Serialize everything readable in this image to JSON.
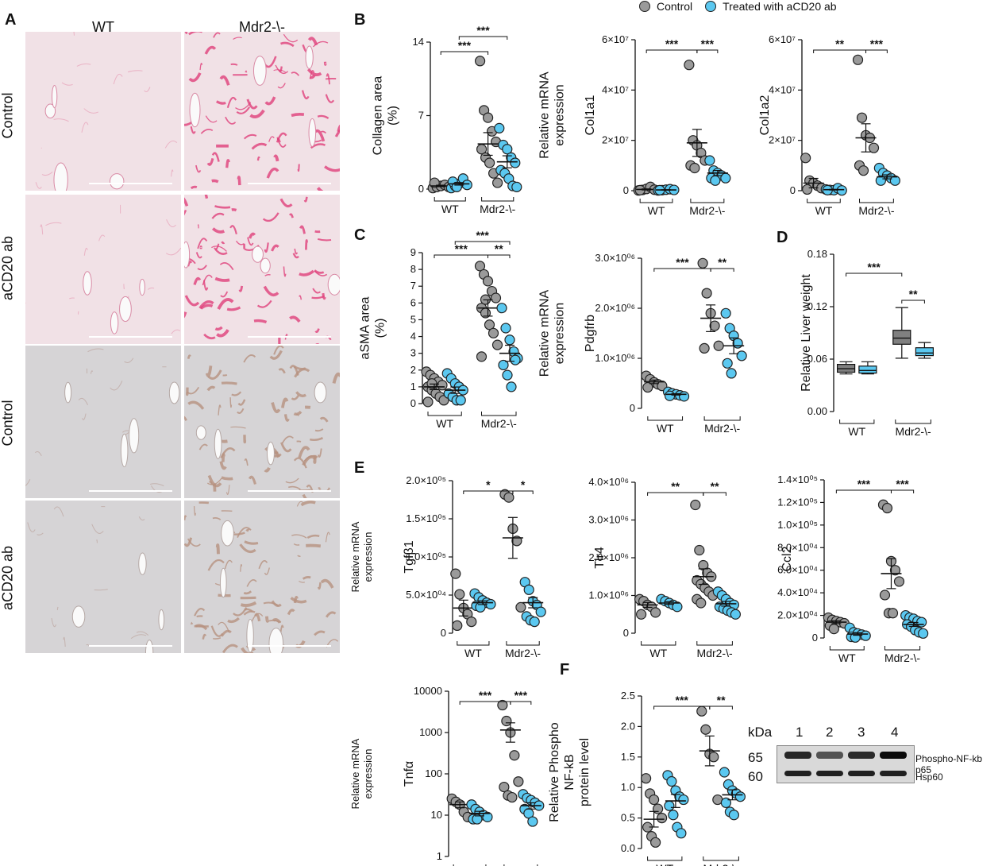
{
  "panels": {
    "A": "A",
    "B": "B",
    "C": "C",
    "D": "D",
    "E": "E",
    "F": "F"
  },
  "micro": {
    "col_headers": [
      "WT",
      "Mdr2-\\-"
    ],
    "row_labels": [
      "Control",
      "aCD20 ab",
      "Control",
      "aCD20 ab"
    ],
    "row_stains": [
      "sirius-red",
      "sirius-red",
      "asma-ihc",
      "asma-ihc"
    ]
  },
  "legend": {
    "items": [
      {
        "label": "Control",
        "color": "#9a9a9a"
      },
      {
        "label": "Treated with aCD20 ab",
        "color": "#5bc8f0"
      }
    ]
  },
  "colors": {
    "control": "#9a9a9a",
    "treated": "#5bc8f0",
    "box_control": "#808080",
    "box_treated": "#5bc8f0"
  },
  "group_labels": [
    "WT",
    "Mdr2-\\-"
  ],
  "chart_data": [
    {
      "id": "collagen",
      "type": "scatter",
      "ylabel": "Collagen area\n(%)",
      "ylim": [
        0,
        14
      ],
      "yticks": [
        "0",
        "7",
        "14"
      ],
      "series": [
        {
          "values": [
            0.1,
            0.2,
            0.3,
            0.4,
            0.2,
            0.6
          ],
          "mean": 0.3
        },
        {
          "values": [
            0.1,
            0.3,
            0.5,
            1.0,
            0.4,
            0.7,
            0.2
          ],
          "mean": 0.5
        },
        {
          "values": [
            12.2,
            7.5,
            6.8,
            5.5,
            4.5,
            3.8,
            3.0,
            2.5,
            1.5,
            0.6
          ],
          "mean": 4.3
        },
        {
          "values": [
            5.8,
            4.2,
            3.8,
            3.0,
            2.5,
            1.8,
            1.5,
            1.0,
            0.3,
            0.2
          ],
          "mean": 2.6
        }
      ],
      "sig": [
        {
          "from": 0,
          "to": 2,
          "label": "***"
        },
        {
          "from": 1,
          "to": 3,
          "label": "***"
        }
      ]
    },
    {
      "id": "col1a1",
      "type": "scatter",
      "ylabel": "Relative mRNA\nexpression",
      "ylabel2": "Col1a1",
      "ylim": [
        0,
        60000000
      ],
      "yticks": [
        "0",
        "2×10⁷",
        "4×10⁷",
        "6×10⁷"
      ],
      "series": [
        {
          "values": [
            100000,
            300000,
            700000,
            1500000,
            400000,
            200000
          ],
          "mean": 500000
        },
        {
          "values": [
            100000,
            200000,
            400000,
            600000,
            300000,
            200000
          ],
          "mean": 300000
        },
        {
          "values": [
            50000000,
            20000000,
            18000000,
            15000000,
            12000000,
            10000000,
            9000000
          ],
          "mean": 19000000
        },
        {
          "values": [
            12000000,
            8000000,
            7000000,
            6000000,
            5000000,
            5000000,
            4000000
          ],
          "mean": 7000000
        }
      ],
      "sig": [
        {
          "from": 0,
          "to": 2,
          "label": "***"
        },
        {
          "from": 2,
          "to": 3,
          "label": "***"
        }
      ]
    },
    {
      "id": "col1a2",
      "type": "scatter",
      "ylabel": "Col1a2",
      "ylim": [
        0,
        60000000
      ],
      "yticks": [
        "0",
        "2×10⁷",
        "4×10⁷",
        "6×10⁷"
      ],
      "series": [
        {
          "values": [
            13000000,
            4000000,
            3000000,
            2000000,
            1000000,
            500000
          ],
          "mean": 3000000
        },
        {
          "values": [
            500000,
            300000,
            200000,
            1000000,
            100000,
            200000
          ],
          "mean": 400000
        },
        {
          "values": [
            52000000,
            29000000,
            22000000,
            21000000,
            17000000,
            10000000,
            8000000
          ],
          "mean": 21000000
        },
        {
          "values": [
            9000000,
            7000000,
            6000000,
            5000000,
            4000000,
            4000000
          ],
          "mean": 5500000
        }
      ],
      "sig": [
        {
          "from": 0,
          "to": 2,
          "label": "**"
        },
        {
          "from": 2,
          "to": 3,
          "label": "***"
        }
      ]
    },
    {
      "id": "asma",
      "type": "scatter",
      "ylabel": "aSMA area\n(%)",
      "ylim": [
        0,
        9
      ],
      "yticks": [
        "0",
        "1",
        "2",
        "3",
        "4",
        "5",
        "6",
        "7",
        "8",
        "9"
      ],
      "series": [
        {
          "values": [
            1.9,
            1.7,
            1.5,
            1.3,
            1.1,
            1.0,
            0.8,
            0.6,
            0.4,
            0.2,
            0.1,
            1.2
          ],
          "mean": 1.0
        },
        {
          "values": [
            1.8,
            1.5,
            1.2,
            1.0,
            0.8,
            0.6,
            0.4,
            0.2,
            0.2
          ],
          "mean": 0.8
        },
        {
          "values": [
            8.2,
            7.7,
            7.3,
            6.7,
            6.3,
            5.7,
            5.4,
            4.7,
            4.2,
            3.5,
            2.8,
            6.2
          ],
          "mean": 5.7
        },
        {
          "values": [
            5.7,
            4.5,
            3.8,
            3.1,
            2.7,
            2.3,
            1.7,
            1.0,
            2.6
          ],
          "mean": 3.0
        }
      ],
      "sig": [
        {
          "from": 0,
          "to": 2,
          "label": "***"
        },
        {
          "from": 1,
          "to": 3,
          "label": "***"
        },
        {
          "from": 2,
          "to": 3,
          "label": "**"
        }
      ]
    },
    {
      "id": "pdgfrb",
      "type": "scatter",
      "ylabel": "Relative mRNA\nexpression",
      "ylabel2": "Pdgfrb",
      "ylim": [
        0,
        3000000
      ],
      "yticks": [
        "0",
        "1.0×10⁰⁶",
        "2.0×10⁰⁶",
        "3.0×10⁰⁶"
      ],
      "series": [
        {
          "values": [
            650000,
            580000,
            520000,
            480000,
            450000,
            420000
          ],
          "mean": 530000
        },
        {
          "values": [
            330000,
            300000,
            280000,
            260000,
            240000,
            250000
          ],
          "mean": 280000
        },
        {
          "values": [
            2900000,
            2300000,
            1900000,
            1650000,
            1250000,
            1200000
          ],
          "mean": 1800000
        },
        {
          "values": [
            1900000,
            1600000,
            1450000,
            1300000,
            1050000,
            900000,
            700000
          ],
          "mean": 1250000
        }
      ],
      "sig": [
        {
          "from": 0,
          "to": 2,
          "label": "***"
        },
        {
          "from": 2,
          "to": 3,
          "label": "**"
        }
      ]
    },
    {
      "id": "liver",
      "type": "box",
      "ylabel": "Relative Liver weight",
      "ylim": [
        0,
        0.18
      ],
      "yticks": [
        "0.00",
        "0.06",
        "0.12",
        "0.18"
      ],
      "boxes": [
        {
          "min": 0.043,
          "q1": 0.045,
          "median": 0.049,
          "q3": 0.054,
          "max": 0.057
        },
        {
          "min": 0.043,
          "q1": 0.044,
          "median": 0.047,
          "q3": 0.052,
          "max": 0.057
        },
        {
          "min": 0.061,
          "q1": 0.077,
          "median": 0.084,
          "q3": 0.093,
          "max": 0.119
        },
        {
          "min": 0.061,
          "q1": 0.064,
          "median": 0.067,
          "q3": 0.073,
          "max": 0.079
        }
      ],
      "sig": [
        {
          "from": 0,
          "to": 2,
          "label": "***"
        },
        {
          "from": 2,
          "to": 3,
          "label": "**"
        }
      ]
    },
    {
      "id": "tgfb1",
      "type": "scatter",
      "ylabel": "Relative mRNA\nexpression",
      "ylabel2": "Tgfβ1",
      "ylim": [
        0,
        200000
      ],
      "yticks": [
        "0",
        "5.0×10⁰⁴",
        "1.0×10⁰⁵",
        "1.5×10⁰⁵",
        "2.0×10⁰⁵"
      ],
      "series": [
        {
          "values": [
            78000,
            51000,
            33000,
            25000,
            15000,
            10000
          ],
          "mean": 33000
        },
        {
          "values": [
            52000,
            47000,
            43000,
            40000,
            38000,
            36000,
            34000
          ],
          "mean": 40000
        },
        {
          "values": [
            182000,
            178000,
            137000,
            121000,
            34000
          ],
          "mean": 125000
        },
        {
          "values": [
            67000,
            57000,
            42000,
            37000,
            28000,
            22000,
            17000,
            15000
          ],
          "mean": 40000
        }
      ],
      "sig": [
        {
          "from": 0,
          "to": 2,
          "label": "*"
        },
        {
          "from": 2,
          "to": 3,
          "label": "*"
        }
      ]
    },
    {
      "id": "tlr4",
      "type": "scatter",
      "ylabel": "Tlr4",
      "ylim": [
        0,
        4000000
      ],
      "yticks": [
        "0",
        "1.0×10⁰⁶",
        "2.0×10⁰⁶",
        "3.0×10⁰⁶",
        "4.0×10⁰⁶"
      ],
      "series": [
        {
          "values": [
            900000,
            850000,
            750000,
            700000,
            550000,
            500000
          ],
          "mean": 750000
        },
        {
          "values": [
            900000,
            850000,
            800000,
            750000,
            700000
          ],
          "mean": 800000
        },
        {
          "values": [
            3400000,
            2200000,
            1800000,
            1600000,
            1500000,
            1400000,
            1300000,
            1200000,
            1100000,
            1000000,
            900000,
            800000
          ],
          "mean": 1500000
        },
        {
          "values": [
            1100000,
            1000000,
            900000,
            800000,
            750000,
            700000,
            650000,
            600000,
            550000,
            500000
          ],
          "mean": 780000
        }
      ],
      "sig": [
        {
          "from": 0,
          "to": 2,
          "label": "**"
        },
        {
          "from": 2,
          "to": 3,
          "label": "**"
        }
      ]
    },
    {
      "id": "ccl2",
      "type": "scatter",
      "ylabel": "Ccl2",
      "ylim": [
        0,
        140000
      ],
      "yticks": [
        "0",
        "2.0×10⁰⁴",
        "4.0×10⁰⁴",
        "6.0×10⁰⁴",
        "8.0×10⁰⁴",
        "1.0×10⁰⁵",
        "1.2×10⁰⁵",
        "1.4×10⁰⁵"
      ],
      "series": [
        {
          "values": [
            18000,
            16000,
            15000,
            14000,
            13000,
            11000,
            8000
          ],
          "mean": 14000
        },
        {
          "values": [
            9000,
            5000,
            4000,
            3000,
            2000,
            1000,
            500
          ],
          "mean": 3500
        },
        {
          "values": [
            118000,
            115000,
            68000,
            60000,
            50000,
            38000,
            22000,
            22000
          ],
          "mean": 57000
        },
        {
          "values": [
            20000,
            18000,
            17000,
            15000,
            14000,
            12000,
            10000,
            7000,
            5000,
            4000
          ],
          "mean": 12000
        }
      ],
      "sig": [
        {
          "from": 0,
          "to": 2,
          "label": "***"
        },
        {
          "from": 2,
          "to": 3,
          "label": "***"
        }
      ]
    },
    {
      "id": "tnfa",
      "type": "scatter",
      "scale": "log",
      "ylabel": "Relative mRNA\nexpression",
      "ylabel2": "Tnfα",
      "ylim": [
        1,
        10000
      ],
      "yticks": [
        "1",
        "10",
        "100",
        "1000",
        "10000"
      ],
      "series": [
        {
          "values": [
            25,
            21,
            18,
            12,
            9
          ],
          "mean": 18
        },
        {
          "values": [
            18,
            14,
            12,
            10,
            9,
            8,
            8
          ],
          "mean": 11
        },
        {
          "values": [
            4600,
            1900,
            1000,
            280,
            65,
            48,
            30,
            27
          ],
          "mean": 1150
        },
        {
          "values": [
            32,
            26,
            23,
            20,
            17,
            14,
            11,
            7
          ],
          "mean": 17
        }
      ],
      "sig": [
        {
          "from": 0,
          "to": 2,
          "label": "***"
        },
        {
          "from": 2,
          "to": 3,
          "label": "***"
        }
      ]
    },
    {
      "id": "nfkb",
      "type": "scatter",
      "ylabel": "Relative Phospho\nNF-kB\nprotein level",
      "ylim": [
        0,
        2.5
      ],
      "yticks": [
        "0.0",
        "0.5",
        "1.0",
        "1.5",
        "2.0",
        "2.5"
      ],
      "series": [
        {
          "values": [
            1.15,
            0.9,
            0.8,
            0.65,
            0.5,
            0.35,
            0.2,
            0.1
          ],
          "mean": 0.48
        },
        {
          "values": [
            1.2,
            1.1,
            0.95,
            0.85,
            0.8,
            0.7,
            0.55,
            0.35,
            0.25
          ],
          "mean": 0.78
        },
        {
          "values": [
            2.25,
            1.95,
            1.55,
            1.5,
            0.8
          ],
          "mean": 1.6
        },
        {
          "values": [
            1.25,
            1.05,
            0.95,
            0.9,
            0.85,
            0.75,
            0.6,
            0.55
          ],
          "mean": 0.88
        }
      ],
      "sig": [
        {
          "from": 0,
          "to": 2,
          "label": "***"
        },
        {
          "from": 2,
          "to": 3,
          "label": "**"
        }
      ]
    }
  ],
  "western": {
    "kda_label": "kDa",
    "lanes": [
      "1",
      "2",
      "3",
      "4"
    ],
    "bands": [
      {
        "kda": "65",
        "label": "Phospho-NF-kb p65",
        "intensity": [
          0.75,
          0.35,
          0.7,
          1.0
        ]
      },
      {
        "kda": "60",
        "label": "Hsp60",
        "intensity": [
          0.8,
          0.8,
          0.8,
          0.8
        ]
      }
    ]
  }
}
